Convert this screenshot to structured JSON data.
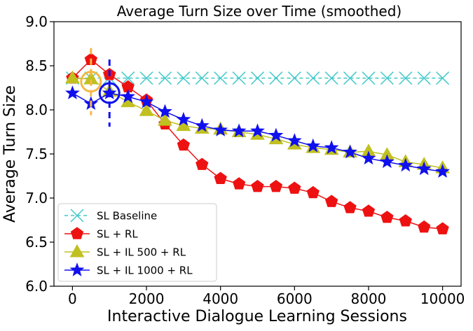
{
  "chart_data": {
    "type": "line",
    "title": "Average Turn Size over Time (smoothed)",
    "xlabel": "Interactive Dialogue Learning Sessions",
    "ylabel": "Average Turn Size",
    "xlim": [
      -500,
      10500
    ],
    "ylim": [
      6.0,
      9.0
    ],
    "x_ticks": [
      0,
      2000,
      4000,
      6000,
      8000,
      10000
    ],
    "y_ticks": [
      6.0,
      6.5,
      7.0,
      7.5,
      8.0,
      8.5,
      9.0
    ],
    "x_tick_labels": [
      "0",
      "2000",
      "4000",
      "6000",
      "8000",
      "10000"
    ],
    "y_tick_labels": [
      "6.0",
      "6.5",
      "7.0",
      "7.5",
      "8.0",
      "8.5",
      "9.0"
    ],
    "grid": false,
    "legend_position": "bottom-left",
    "x": [
      0,
      500,
      1000,
      1500,
      2000,
      2500,
      3000,
      3500,
      4000,
      4500,
      5000,
      5500,
      6000,
      6500,
      7000,
      7500,
      8000,
      8500,
      9000,
      9500,
      10000
    ],
    "series": [
      {
        "name": "SL Baseline",
        "color": "#3ec8c8",
        "marker": "x",
        "line_style": "dashed",
        "values": [
          8.36,
          8.36,
          8.36,
          8.36,
          8.36,
          8.36,
          8.36,
          8.36,
          8.36,
          8.36,
          8.36,
          8.36,
          8.36,
          8.36,
          8.36,
          8.36,
          8.36,
          8.36,
          8.36,
          8.36,
          8.36
        ]
      },
      {
        "name": "SL + RL",
        "color": "#ee1111",
        "marker": "pentagon",
        "line_style": "solid",
        "values": [
          8.36,
          8.57,
          8.4,
          8.26,
          8.11,
          7.84,
          7.6,
          7.38,
          7.22,
          7.16,
          7.13,
          7.13,
          7.11,
          7.06,
          6.96,
          6.89,
          6.85,
          6.78,
          6.74,
          6.67,
          6.65
        ]
      },
      {
        "name": "SL + IL 500 + RL",
        "color": "#c0c020",
        "marker": "triangle",
        "line_style": "solid",
        "values": [
          8.36,
          8.35,
          8.21,
          8.09,
          7.99,
          7.88,
          7.82,
          7.79,
          7.78,
          7.75,
          7.72,
          7.67,
          7.61,
          7.57,
          7.55,
          7.52,
          7.53,
          7.49,
          7.41,
          7.38,
          7.34
        ]
      },
      {
        "name": "SL + IL 1000 + RL",
        "color": "#1010ee",
        "marker": "star",
        "line_style": "solid",
        "values": [
          8.19,
          8.07,
          8.19,
          8.15,
          8.09,
          7.98,
          7.89,
          7.82,
          7.77,
          7.76,
          7.76,
          7.71,
          7.65,
          7.59,
          7.57,
          7.52,
          7.45,
          7.41,
          7.37,
          7.33,
          7.3
        ]
      }
    ],
    "annotations": [
      {
        "x": 500,
        "y": 8.32,
        "color": "#f5b845",
        "type": "circle-with-vertical-dashed-line"
      },
      {
        "x": 1000,
        "y": 8.19,
        "color": "#1010ee",
        "type": "circle-with-vertical-dashed-line"
      }
    ]
  }
}
